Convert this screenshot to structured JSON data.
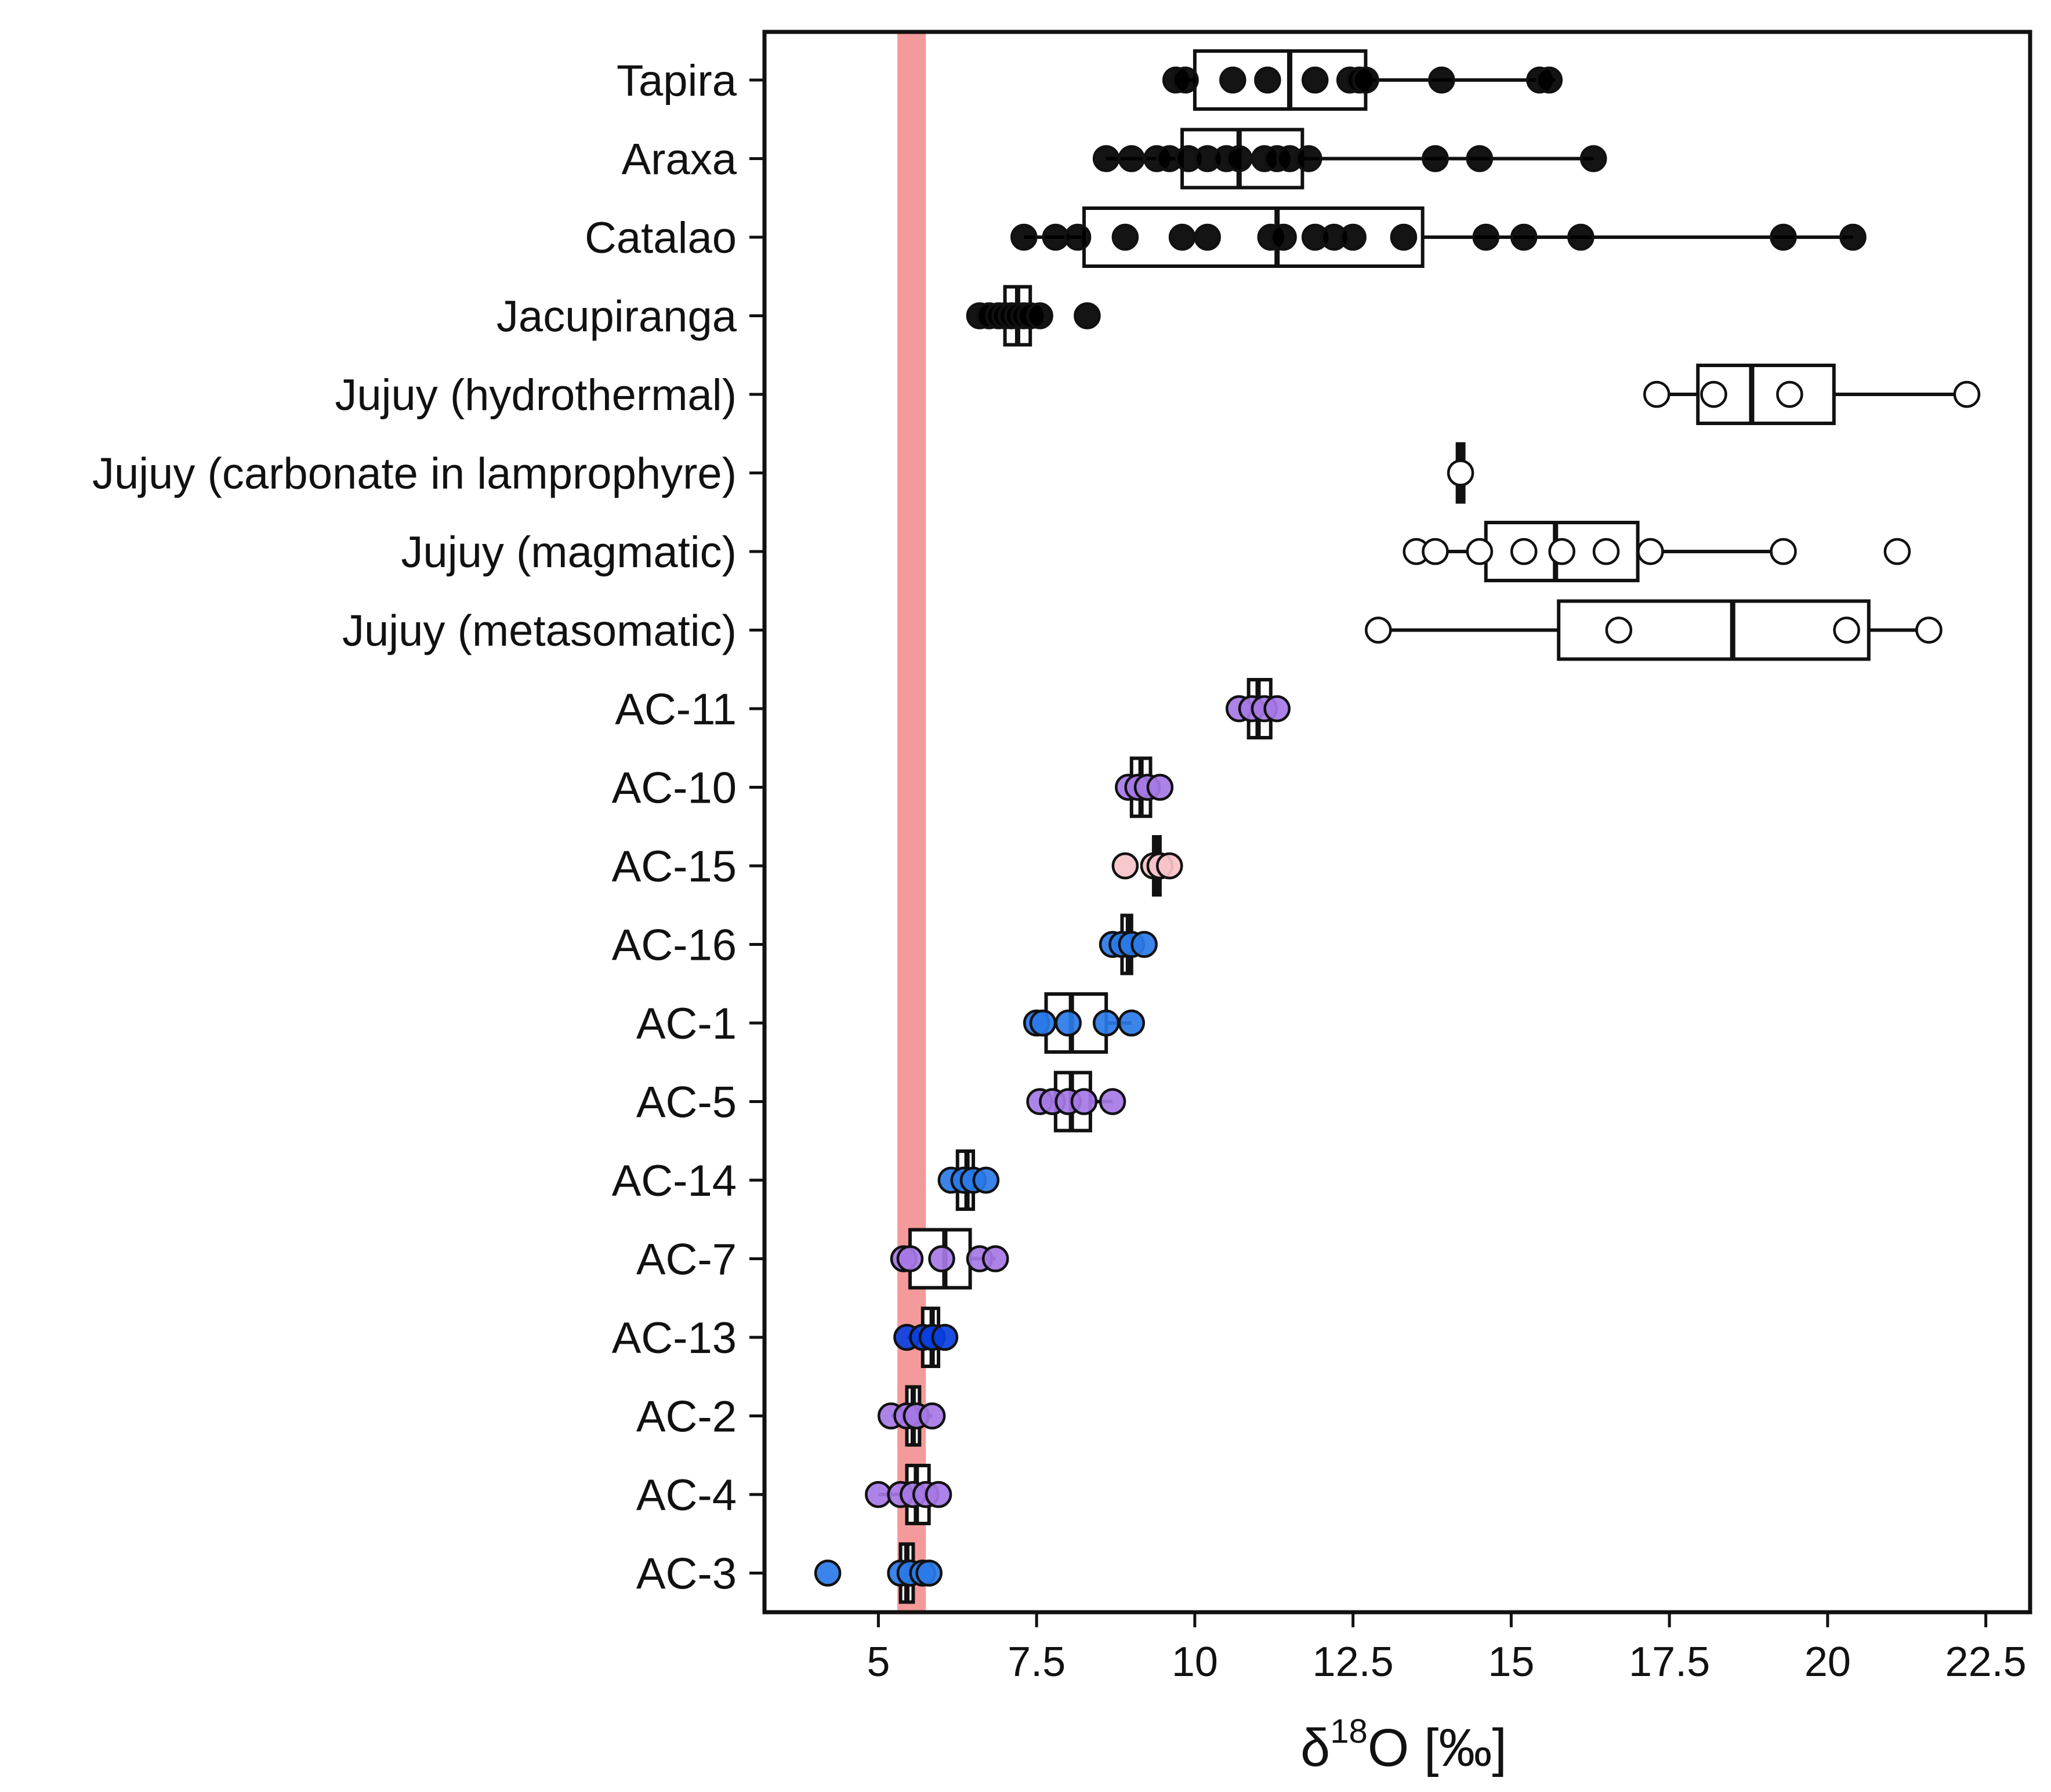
{
  "chart_data": {
    "type": "boxplot",
    "orientation": "horizontal",
    "xlabel": {
      "main": "δ",
      "superscript": "18",
      "tail": "O [‰]"
    },
    "xlim": [
      3.2,
      23.2
    ],
    "xticks": [
      5,
      7.5,
      10,
      12.5,
      15,
      17.5,
      20,
      22.5
    ],
    "xtick_labels": [
      "5",
      "7.5",
      "10",
      "12.5",
      "15",
      "17.5",
      "20",
      "22.5"
    ],
    "reference_band": {
      "from": 5.3,
      "to": 5.75,
      "color": "#f59a9a"
    },
    "colors": {
      "black": "#000000",
      "white": "#ffffff",
      "purple": "#a678e6",
      "pink": "#f7c3c8",
      "blue": "#2a7ae8",
      "darkblue": "#0a3fe0",
      "box_edge": "#111111",
      "median": "#111111"
    },
    "categories": [
      {
        "label": "Tapira",
        "q1": 10.0,
        "median": 11.5,
        "q3": 12.7,
        "whisker_low": 9.7,
        "whisker_high": 15.7,
        "color": "black",
        "points": [
          9.7,
          9.85,
          10.6,
          11.15,
          11.9,
          12.45,
          12.6,
          12.7,
          13.9,
          15.45,
          15.6
        ]
      },
      {
        "label": "Araxa",
        "q1": 9.8,
        "median": 10.7,
        "q3": 11.7,
        "whisker_low": 8.6,
        "whisker_high": 16.3,
        "color": "black",
        "points": [
          8.6,
          9.0,
          9.4,
          9.6,
          9.9,
          10.2,
          10.5,
          10.7,
          11.1,
          11.3,
          11.5,
          11.8,
          13.8,
          14.5,
          16.3
        ]
      },
      {
        "label": "Catalao",
        "q1": 8.25,
        "median": 11.3,
        "q3": 13.6,
        "whisker_low": 7.3,
        "whisker_high": 20.4,
        "color": "black",
        "points": [
          7.3,
          7.8,
          8.15,
          8.9,
          9.8,
          10.2,
          11.2,
          11.4,
          11.9,
          12.2,
          12.5,
          13.3,
          14.6,
          15.2,
          16.1,
          19.3,
          20.4
        ]
      },
      {
        "label": "Jacupiranga",
        "q1": 7.0,
        "median": 7.2,
        "q3": 7.4,
        "whisker_low": 6.6,
        "whisker_high": 7.55,
        "color": "black",
        "points": [
          6.6,
          6.75,
          6.9,
          7.0,
          7.1,
          7.2,
          7.3,
          7.4,
          7.55,
          8.3
        ]
      },
      {
        "label": "Jujuy (hydrothermal)",
        "q1": 17.95,
        "median": 18.8,
        "q3": 20.1,
        "whisker_low": 17.3,
        "whisker_high": 22.2,
        "color": "white",
        "points": [
          17.3,
          18.2,
          19.4,
          22.2
        ]
      },
      {
        "label": "Jujuy (carbonate in lamprophyre)",
        "q1": 14.15,
        "median": 14.2,
        "q3": 14.25,
        "whisker_low": 14.15,
        "whisker_high": 14.25,
        "color": "white",
        "points": [
          14.2
        ]
      },
      {
        "label": "Jujuy (magmatic)",
        "q1": 14.6,
        "median": 15.7,
        "q3": 17.0,
        "whisker_low": 13.5,
        "whisker_high": 19.3,
        "color": "white",
        "points": [
          13.5,
          13.8,
          14.5,
          15.2,
          15.8,
          16.5,
          17.2,
          19.3,
          21.1
        ]
      },
      {
        "label": "Jujuy (metasomatic)",
        "q1": 15.75,
        "median": 18.5,
        "q3": 20.65,
        "whisker_low": 12.9,
        "whisker_high": 21.6,
        "color": "white",
        "points": [
          12.9,
          16.7,
          20.3,
          21.6
        ]
      },
      {
        "label": "AC-11",
        "q1": 10.85,
        "median": 11.0,
        "q3": 11.2,
        "whisker_low": 10.7,
        "whisker_high": 11.3,
        "color": "purple",
        "points": [
          10.7,
          10.9,
          11.1,
          11.3
        ]
      },
      {
        "label": "AC-10",
        "q1": 9.0,
        "median": 9.15,
        "q3": 9.3,
        "whisker_low": 8.95,
        "whisker_high": 9.45,
        "color": "purple",
        "points": [
          8.95,
          9.1,
          9.25,
          9.45
        ]
      },
      {
        "label": "AC-15",
        "q1": 9.35,
        "median": 9.4,
        "q3": 9.45,
        "whisker_low": 9.3,
        "whisker_high": 9.5,
        "color": "pink",
        "points": [
          8.9,
          9.35,
          9.45,
          9.6
        ]
      },
      {
        "label": "AC-16",
        "q1": 8.85,
        "median": 8.95,
        "q3": 9.0,
        "whisker_low": 8.7,
        "whisker_high": 9.2,
        "color": "blue",
        "points": [
          8.7,
          8.85,
          9.0,
          9.2
        ]
      },
      {
        "label": "AC-1",
        "q1": 7.65,
        "median": 8.05,
        "q3": 8.6,
        "whisker_low": 7.5,
        "whisker_high": 9.0,
        "color": "blue",
        "points": [
          7.5,
          7.6,
          8.0,
          8.6,
          9.0
        ]
      },
      {
        "label": "AC-5",
        "q1": 7.8,
        "median": 8.05,
        "q3": 8.35,
        "whisker_low": 7.55,
        "whisker_high": 8.7,
        "color": "purple",
        "points": [
          7.55,
          7.75,
          8.0,
          8.25,
          8.7
        ]
      },
      {
        "label": "AC-14",
        "q1": 6.25,
        "median": 6.4,
        "q3": 6.5,
        "whisker_low": 6.15,
        "whisker_high": 6.7,
        "color": "blue",
        "points": [
          6.15,
          6.35,
          6.5,
          6.7
        ]
      },
      {
        "label": "AC-7",
        "q1": 5.5,
        "median": 6.05,
        "q3": 6.45,
        "whisker_low": 5.4,
        "whisker_high": 6.85,
        "color": "purple",
        "points": [
          5.4,
          5.5,
          6.0,
          6.6,
          6.85
        ]
      },
      {
        "label": "AC-13",
        "q1": 5.7,
        "median": 5.85,
        "q3": 5.95,
        "whisker_low": 5.45,
        "whisker_high": 6.05,
        "color": "darkblue",
        "points": [
          5.45,
          5.7,
          5.85,
          6.05
        ]
      },
      {
        "label": "AC-2",
        "q1": 5.45,
        "median": 5.55,
        "q3": 5.65,
        "whisker_low": 5.2,
        "whisker_high": 5.85,
        "color": "purple",
        "points": [
          5.2,
          5.45,
          5.6,
          5.85
        ]
      },
      {
        "label": "AC-4",
        "q1": 5.45,
        "median": 5.6,
        "q3": 5.8,
        "whisker_low": 5.0,
        "whisker_high": 5.95,
        "color": "purple",
        "points": [
          5.0,
          5.35,
          5.55,
          5.75,
          5.95
        ]
      },
      {
        "label": "AC-3",
        "q1": 5.35,
        "median": 5.45,
        "q3": 5.55,
        "whisker_low": 5.3,
        "whisker_high": 5.8,
        "color": "blue",
        "points": [
          4.2,
          5.35,
          5.5,
          5.7,
          5.8
        ]
      }
    ]
  }
}
